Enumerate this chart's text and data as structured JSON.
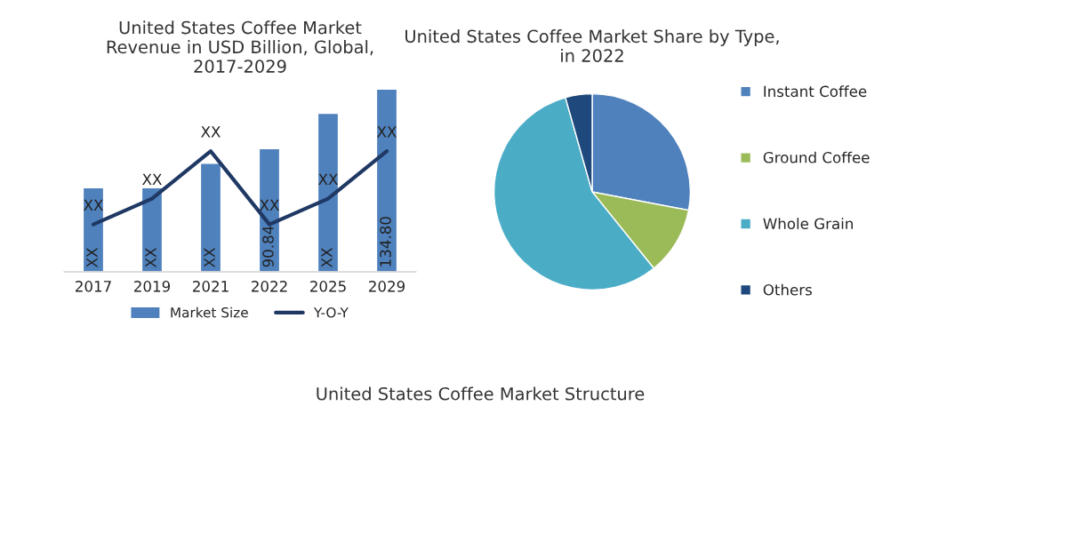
{
  "chart_data": [
    {
      "type": "bar",
      "title": "United States Coffee Market\nRevenue in USD Billion, Global,\n2017-2029",
      "categories": [
        "2017",
        "2019",
        "2021",
        "2022",
        "2025",
        "2029"
      ],
      "legend": "bottom",
      "series": [
        {
          "name": "Market Size",
          "color": "#4f81bd",
          "values": [
            62,
            62,
            80,
            90.84,
            117,
            134.8
          ],
          "value_labels": [
            "XX",
            "XX",
            "XX",
            "90.84",
            "XX",
            "134.80"
          ]
        },
        {
          "name": "Y-O-Y",
          "type": "line",
          "color": "#1f3864",
          "values": [
            35,
            54,
            89,
            35,
            54,
            89
          ],
          "value_labels": [
            "XX",
            "XX",
            "XX",
            "XX",
            "XX",
            "XX"
          ]
        }
      ]
    },
    {
      "type": "pie",
      "title": "United States Coffee Market Share by Type,\nin 2022",
      "legend": "right",
      "categories": [
        "Instant Coffee",
        "Ground Coffee",
        "Whole Grain",
        "Others"
      ],
      "values": [
        28,
        11.2,
        56.4,
        4.4
      ],
      "colors": [
        "#4f81bd",
        "#9bbb59",
        "#4bacc6",
        "#1f497d"
      ]
    },
    {
      "type": "other",
      "title": "United States Coffee Market Structure"
    }
  ]
}
